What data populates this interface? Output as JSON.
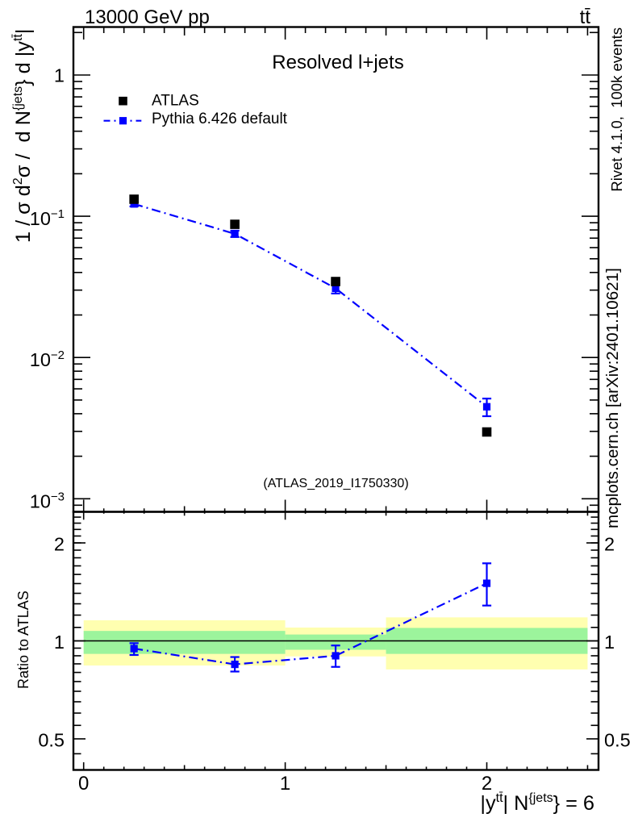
{
  "header": {
    "title_left": "13000 GeV pp",
    "title_right": "tt̄"
  },
  "side_captions": {
    "right_top": "Rivet 4.1.0,  100k events",
    "right_bottom": "mcplots.cern.ch [arXiv:2401.10621]",
    "color": "#808080"
  },
  "chart_data": {
    "type": "line",
    "title": "Resolved l+jets",
    "watermark": "(ATLAS_2019_I1750330)",
    "watermark_color": "#aaaaaa",
    "x_axis": {
      "label_segments": [
        {
          "t": "|y"
        },
        {
          "t": "tt̄",
          "sup": true
        },
        {
          "t": "| N"
        },
        {
          "t": "{jets",
          "sup": true
        },
        {
          "t": "} = 6"
        }
      ],
      "min": 0,
      "max": 2.5,
      "ticks": [
        0,
        1,
        2
      ],
      "tick_labels": [
        "0",
        "1",
        "2"
      ],
      "minor_step": 0.1,
      "medium_step": 0.5
    },
    "y_main": {
      "scale": "log",
      "label_segments": [
        {
          "t": "1 / "
        },
        {
          "t": "σ"
        },
        {
          "t": " d"
        },
        {
          "t": "2",
          "sup": true
        },
        {
          "t": "σ"
        },
        {
          "t": " /  d N"
        },
        {
          "t": "{jets",
          "sup": true
        },
        {
          "t": "} d |y"
        },
        {
          "t": "tt̄",
          "sup": true
        },
        {
          "t": "|"
        }
      ],
      "min": 0.00081,
      "max": 2.19,
      "ticks": [
        1,
        0.1,
        0.01,
        0.001
      ],
      "tick_label_segments": [
        [
          {
            "t": "1"
          }
        ],
        [
          {
            "t": "10"
          },
          {
            "t": "−1",
            "sup": true
          }
        ],
        [
          {
            "t": "10"
          },
          {
            "t": "−2",
            "sup": true
          }
        ],
        [
          {
            "t": "10"
          },
          {
            "t": "−3",
            "sup": true
          }
        ]
      ]
    },
    "y_ratio": {
      "scale": "log",
      "label": "Ratio to ATLAS",
      "min": 0.401,
      "max": 2.49,
      "ticks": [
        0.5,
        1,
        2
      ],
      "tick_labels": [
        "0.5",
        "1",
        "2"
      ],
      "reference_line": 1
    },
    "series": [
      {
        "name": "ATLAS",
        "color": "#000000",
        "marker": "square",
        "marker_size": 11.6,
        "x": [
          0.25,
          0.75,
          1.25,
          2.0
        ],
        "y": [
          0.132,
          0.0877,
          0.0345,
          0.00297
        ]
      },
      {
        "name": "Pythia 6.426 default",
        "color": "#0000ff",
        "marker": "square",
        "marker_size": 9.2,
        "line": "dashdot",
        "x": [
          0.25,
          0.75,
          1.25,
          2.0
        ],
        "y": [
          0.1222,
          0.0751,
          0.0309,
          0.00448
        ],
        "y_lo": [
          0.1174,
          0.0713,
          0.0284,
          0.00384
        ],
        "y_hi": [
          0.1272,
          0.0791,
          0.0336,
          0.00512
        ]
      }
    ],
    "legend": [
      {
        "label": "ATLAS",
        "series": 0
      },
      {
        "label": "Pythia 6.426 default",
        "series": 1
      }
    ],
    "ratio": {
      "name": "Pythia/ATLAS ratio",
      "x": [
        0.25,
        0.75,
        1.25,
        2.0
      ],
      "y": [
        0.947,
        0.847,
        0.9,
        1.503
      ],
      "y_lo": [
        0.905,
        0.805,
        0.832,
        1.284
      ],
      "y_hi": [
        0.984,
        0.892,
        0.968,
        1.731
      ],
      "bands": [
        {
          "x0": 0.0,
          "x1": 1.0,
          "outer": [
            0.84,
            1.157
          ],
          "inner": [
            0.912,
            1.073
          ]
        },
        {
          "x0": 1.0,
          "x1": 1.5,
          "outer": [
            0.896,
            1.099
          ],
          "inner": [
            0.939,
            1.046
          ]
        },
        {
          "x0": 1.5,
          "x1": 2.5,
          "outer": [
            0.817,
            1.181
          ],
          "inner": [
            0.912,
            1.096
          ]
        }
      ],
      "band_colors": {
        "outer": "#ffffb0",
        "inner": "#9cf49c"
      }
    }
  }
}
